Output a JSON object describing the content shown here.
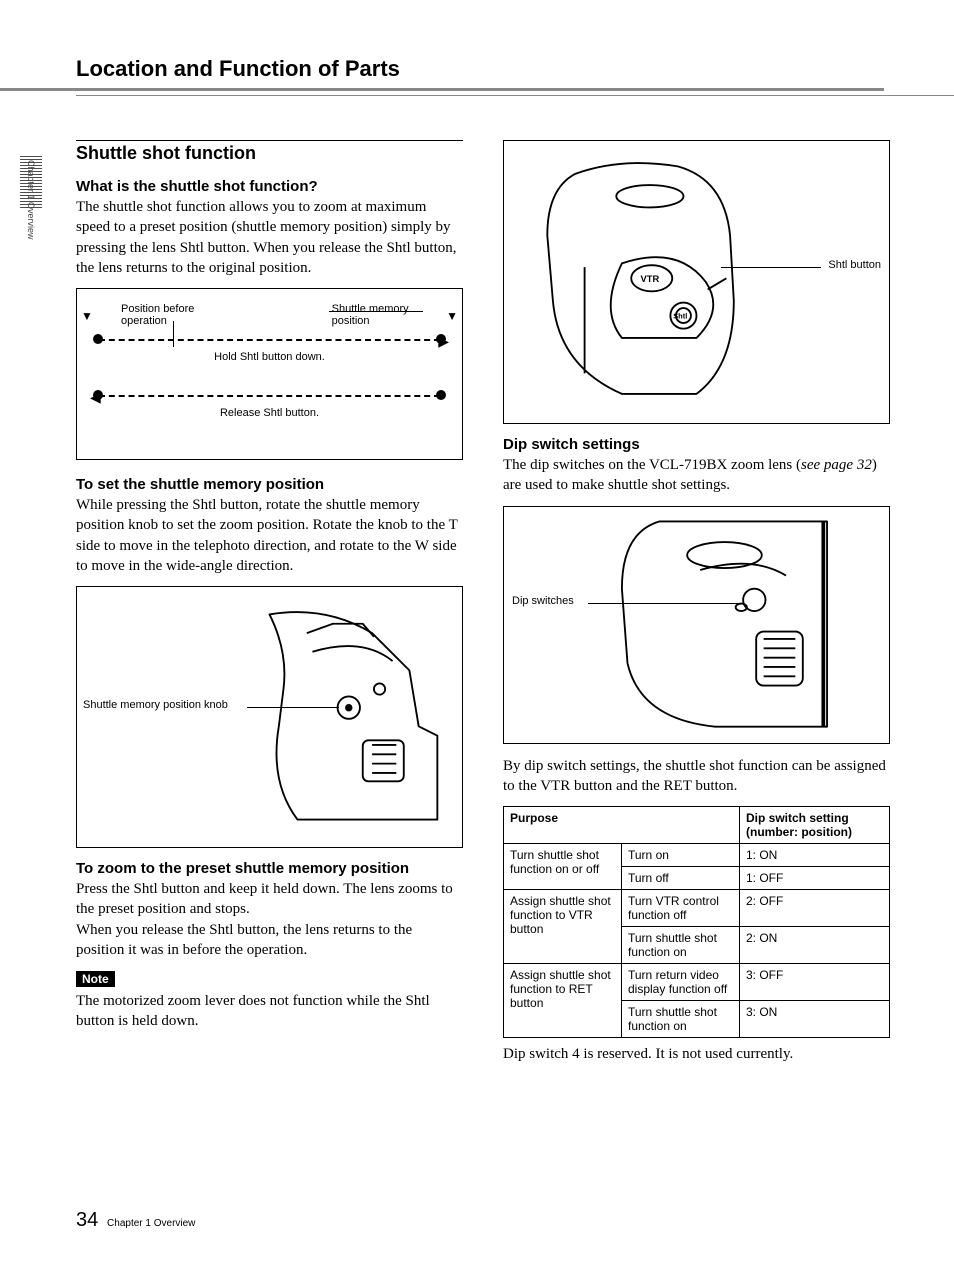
{
  "page_title": "Location and Function of Parts",
  "sidebar_tab": "Chapter 1  Overview",
  "left": {
    "section_title": "Shuttle shot function",
    "h_what": "What is the shuttle shot function?",
    "p_what": "The shuttle shot function allows you to zoom at maximum speed to a preset position (shuttle memory position) simply by pressing the lens Shtl button. When you release the Shtl button, the lens returns to the original position.",
    "diag": {
      "label_before": "Position before operation",
      "label_mem": "Shuttle memory position",
      "caption_hold": "Hold Shtl button down.",
      "caption_release": "Release Shtl button."
    },
    "h_set": "To set the shuttle memory position",
    "p_set": "While pressing the Shtl button, rotate the shuttle memory position knob to set the zoom position. Rotate the knob to the T side to move in the telephoto direction, and rotate to the W side to move in the wide-angle direction.",
    "knob_label": "Shuttle memory position knob",
    "h_zoom": "To zoom to the preset shuttle memory position",
    "p_zoom1": "Press the Shtl button and keep it held down. The lens zooms to the preset position and stops.",
    "p_zoom2": "When you release the Shtl button, the lens returns to the position it was in before the operation.",
    "note_label": "Note",
    "p_note": "The motorized zoom lever does not function while the Shtl button is held down."
  },
  "right": {
    "shtl_label": "Shtl button",
    "vtr_label": "VTR",
    "shtl_btn_text": "Shtl",
    "h_dip": "Dip switch settings",
    "p_dip1a": "The dip switches on the VCL-719BX zoom lens (",
    "p_dip1b": "see page 32",
    "p_dip1c": ") are used to make shuttle shot settings.",
    "dip_switches_label": "Dip switches",
    "p_dip2": "By dip switch settings, the shuttle shot function can be assigned to the VTR button and the RET button.",
    "table": {
      "col_purpose": "Purpose",
      "col_setting": "Dip switch setting (number: position)",
      "rows": [
        {
          "p": "Turn shuttle shot function on or off",
          "s": "Turn on",
          "v": "1: ON",
          "rs": 2
        },
        {
          "p": "",
          "s": "Turn off",
          "v": "1: OFF"
        },
        {
          "p": "Assign shuttle shot function to VTR button",
          "s": "Turn VTR control function off",
          "v": "2: OFF",
          "rs": 2
        },
        {
          "p": "",
          "s": "Turn shuttle shot function on",
          "v": "2: ON"
        },
        {
          "p": "Assign shuttle shot function to RET button",
          "s": "Turn return video display function off",
          "v": "3: OFF",
          "rs": 2
        },
        {
          "p": "",
          "s": "Turn shuttle shot function on",
          "v": "3: ON"
        }
      ]
    },
    "p_dip3": "Dip switch 4 is reserved. It is not used currently."
  },
  "footer": {
    "page": "34",
    "chapter": "Chapter 1   Overview"
  }
}
